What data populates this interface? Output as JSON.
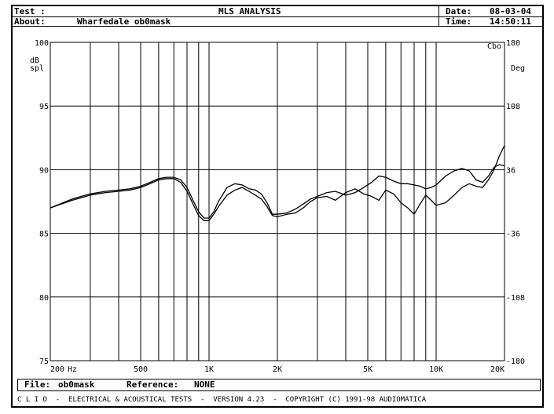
{
  "header": {
    "test_label": "Test :",
    "about_label": "About:",
    "about_value": "Wharfedale ob0mask",
    "title": "MLS ANALYSIS",
    "date_label": "Date:",
    "date_value": "08-03-04",
    "time_label": "Time:",
    "time_value": "14:50:11"
  },
  "footer": {
    "file_label": "File:",
    "file_value": "ob0mask",
    "reference_label": "Reference:",
    "reference_value": "NONE",
    "credits": "C L I O  -  ELECTRICAL & ACOUSTICAL TESTS  -  VERSION 4.23  -  COPYRIGHT (C) 1991-98 AUDIOMATICA"
  },
  "chart_data": {
    "type": "line",
    "title": "MLS ANALYSIS",
    "xlabel": "Hz",
    "ylabel_lines": [
      "dB",
      "spl"
    ],
    "y2label": "Deg",
    "corner_label": "Cbo",
    "x_scale": "log",
    "xlim": [
      200,
      20000
    ],
    "ylim": [
      75,
      100
    ],
    "y2lim": [
      -180,
      180
    ],
    "grid": true,
    "x_tick_labels": [
      {
        "value": 200,
        "label": "200"
      },
      {
        "value": 500,
        "label": "500"
      },
      {
        "value": 1000,
        "label": "1K"
      },
      {
        "value": 2000,
        "label": "2K"
      },
      {
        "value": 5000,
        "label": "5K"
      },
      {
        "value": 10000,
        "label": "10K"
      },
      {
        "value": 20000,
        "label": "20K"
      }
    ],
    "x_grid": [
      300,
      400,
      500,
      600,
      700,
      800,
      900,
      1000,
      2000,
      3000,
      4000,
      5000,
      6000,
      7000,
      8000,
      9000,
      10000
    ],
    "y_ticks": [
      100,
      95,
      90,
      85,
      80,
      75
    ],
    "y2_ticks": [
      180,
      108,
      36,
      -36,
      -108,
      -180
    ],
    "series": [
      {
        "color": "#000000",
        "x": [
          200,
          250,
          300,
          350,
          400,
          450,
          500,
          550,
          600,
          650,
          700,
          750,
          800,
          850,
          900,
          950,
          1000,
          1050,
          1100,
          1200,
          1300,
          1400,
          1500,
          1600,
          1700,
          1800,
          1900,
          2000,
          2200,
          2400,
          2600,
          2800,
          3000,
          3300,
          3600,
          4000,
          4400,
          4800,
          5200,
          5600,
          6000,
          6500,
          7000,
          7500,
          8000,
          8500,
          9000,
          9500,
          10000,
          11000,
          12000,
          13000,
          14000,
          15000,
          16000,
          17000,
          18000,
          19000,
          20000
        ],
        "y": [
          87.0,
          87.7,
          88.1,
          88.3,
          88.4,
          88.5,
          88.7,
          89.0,
          89.3,
          89.4,
          89.4,
          89.2,
          88.6,
          87.6,
          86.7,
          86.2,
          86.2,
          86.7,
          87.5,
          88.6,
          88.9,
          88.8,
          88.5,
          88.4,
          88.1,
          87.4,
          86.5,
          86.5,
          86.6,
          86.9,
          87.3,
          87.7,
          87.9,
          88.2,
          88.3,
          88.0,
          88.2,
          88.6,
          89.0,
          89.5,
          89.4,
          89.1,
          88.9,
          88.9,
          88.8,
          88.7,
          88.5,
          88.6,
          88.8,
          89.5,
          89.9,
          90.1,
          89.9,
          89.2,
          89.0,
          89.5,
          90.2,
          90.4,
          90.3
        ]
      },
      {
        "color": "#000000",
        "x": [
          200,
          250,
          300,
          350,
          400,
          450,
          500,
          550,
          600,
          650,
          700,
          750,
          800,
          850,
          900,
          950,
          1000,
          1050,
          1100,
          1200,
          1300,
          1400,
          1500,
          1600,
          1700,
          1800,
          1900,
          2000,
          2200,
          2400,
          2600,
          2800,
          3000,
          3300,
          3600,
          4000,
          4400,
          4800,
          5200,
          5600,
          6000,
          6500,
          7000,
          7500,
          8000,
          8500,
          9000,
          9500,
          10000,
          11000,
          12000,
          13000,
          14000,
          15000,
          16000,
          17000,
          18000,
          19000,
          20000
        ],
        "y": [
          87.0,
          87.6,
          88.0,
          88.2,
          88.3,
          88.4,
          88.6,
          88.9,
          89.2,
          89.3,
          89.3,
          89.0,
          88.3,
          87.3,
          86.4,
          86.0,
          86.0,
          86.5,
          87.1,
          88.0,
          88.4,
          88.6,
          88.3,
          88.0,
          87.7,
          87.1,
          86.4,
          86.3,
          86.5,
          86.6,
          87.0,
          87.5,
          87.8,
          87.9,
          87.6,
          88.2,
          88.5,
          88.1,
          87.9,
          87.6,
          88.4,
          88.1,
          87.4,
          87.0,
          86.5,
          87.3,
          88.0,
          87.6,
          87.2,
          87.4,
          88.0,
          88.6,
          88.9,
          88.7,
          88.6,
          89.2,
          90.0,
          91.1,
          91.9
        ]
      }
    ]
  }
}
